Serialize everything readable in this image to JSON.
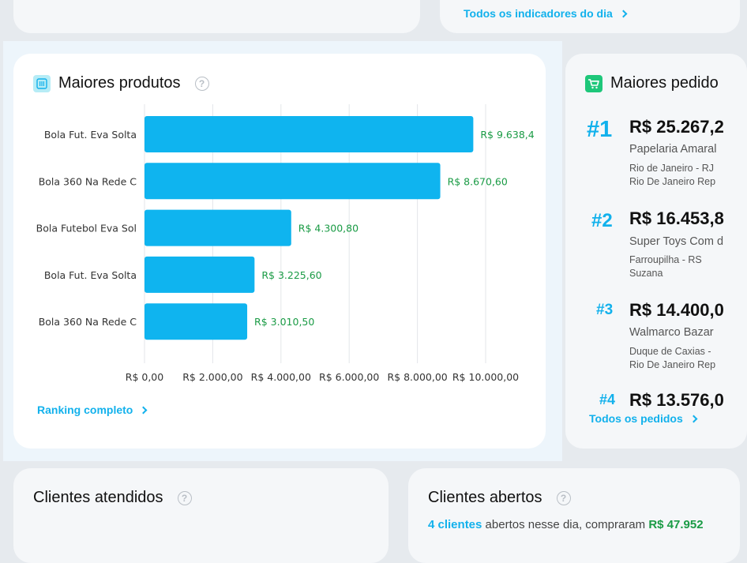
{
  "top_link": {
    "label": "Todos os indicadores do dia"
  },
  "products_card": {
    "title": "Maiores produtos",
    "help": "?",
    "ranking_link": "Ranking completo"
  },
  "chart_data": {
    "type": "bar",
    "orientation": "horizontal",
    "categories": [
      "Bola Fut. Eva Solta",
      "Bola 360 Na Rede C",
      "Bola Futebol Eva Sol",
      "Bola Fut. Eva Solta",
      "Bola 360 Na Rede C"
    ],
    "values": [
      9638.4,
      8670.6,
      4300.8,
      3225.6,
      3010.5
    ],
    "value_labels": [
      "R$ 9.638,4",
      "R$ 8.670,60",
      "R$ 4.300,80",
      "R$ 3.225,60",
      "R$ 3.010,50"
    ],
    "xticks": [
      "R$ 0,00",
      "R$ 2.000,00",
      "R$ 4.000,00",
      "R$ 6.000,00",
      "R$ 8.000,00",
      "R$ 10.000,00"
    ],
    "xlim": [
      0,
      11000
    ],
    "grid": true,
    "bar_color": "#0fb4ef",
    "label_color": "#1a9b45"
  },
  "orders_card": {
    "title": "Maiores pedido",
    "all_link": "Todos os pedidos",
    "orders": [
      {
        "rank": "#1",
        "amount": "R$ 25.267,2",
        "client": "Papelaria Amaral",
        "city1": "Rio de Janeiro - RJ",
        "city2": "Rio De Janeiro Rep"
      },
      {
        "rank": "#2",
        "amount": "R$ 16.453,8",
        "client": "Super Toys Com d",
        "city1": "Farroupilha - RS",
        "city2": "Suzana"
      },
      {
        "rank": "#3",
        "amount": "R$ 14.400,0",
        "client": "Walmarco Bazar",
        "city1": "Duque de Caxias -",
        "city2": "Rio De Janeiro Rep"
      },
      {
        "rank": "#4",
        "amount": "R$ 13.576,0"
      }
    ]
  },
  "clients_served": {
    "title": "Clientes atendidos"
  },
  "clients_open": {
    "title": "Clientes abertos",
    "count": "4 clientes",
    "text": "abertos nesse dia, compraram",
    "amount": "R$ 47.952"
  },
  "colors": {
    "accent": "#12b1ec",
    "green": "#1a9b45",
    "bar": "#0fb4ef"
  }
}
